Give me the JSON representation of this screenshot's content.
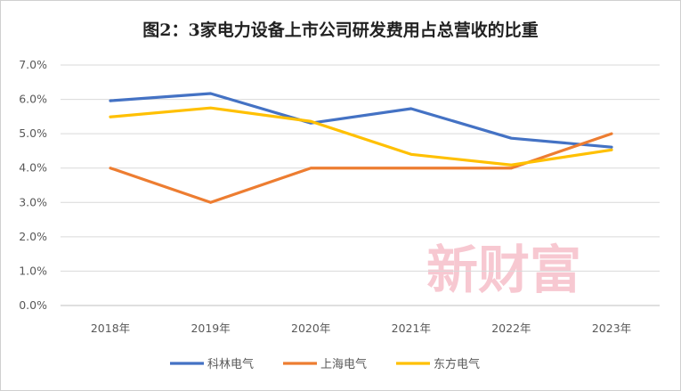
{
  "chart_data": {
    "type": "line",
    "title": "图2：3家电力设备上市公司研发费用占总营收的比重",
    "categories": [
      "2018年",
      "2019年",
      "2020年",
      "2021年",
      "2022年",
      "2023年"
    ],
    "yticks": [
      "0.0%",
      "1.0%",
      "2.0%",
      "3.0%",
      "4.0%",
      "5.0%",
      "6.0%",
      "7.0%"
    ],
    "ylim": [
      0,
      7
    ],
    "grid": true,
    "legend_position": "bottom",
    "series": [
      {
        "name": "科林电气",
        "color": "#4472C4",
        "values": [
          5.96,
          6.17,
          5.31,
          5.73,
          4.87,
          4.61
        ]
      },
      {
        "name": "上海电气",
        "color": "#ED7D31",
        "values": [
          4.0,
          3.0,
          4.0,
          4.0,
          4.0,
          5.0
        ]
      },
      {
        "name": "东方电气",
        "color": "#FFC000",
        "values": [
          5.49,
          5.75,
          5.36,
          4.4,
          4.09,
          4.53
        ]
      }
    ],
    "watermark": "新财富"
  }
}
